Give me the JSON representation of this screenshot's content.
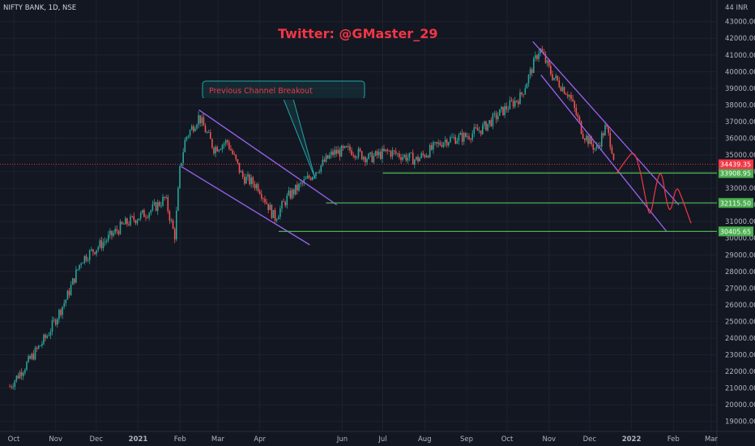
{
  "header": {
    "ticker": "NIFTY BANK, 1D, NSE",
    "unit_label": "44 INR"
  },
  "annotations": {
    "twitter_handle": "Twitter: @GMaster_29",
    "callout": "Previous Channel Breakout"
  },
  "colors": {
    "background": "#131722",
    "grid": "#1e2230",
    "bull": "#26a69a",
    "bear": "#ef5350",
    "channel": "#9c62f2",
    "support": "#4caf50",
    "callout": "#22a6a6",
    "projection": "#f23645",
    "current_price": "#f23645"
  },
  "chart_data": {
    "type": "candlestick",
    "title": "NIFTY BANK, 1D, NSE",
    "y_axis": {
      "ticks": [
        "19000.00",
        "20000.00",
        "21000.00",
        "22000.00",
        "23000.00",
        "24000.00",
        "25000.00",
        "26000.00",
        "27000.00",
        "28000.00",
        "29000.00",
        "30000.00",
        "31000.00",
        "32000.00",
        "33000.00",
        "34000.00",
        "35000.00",
        "36000.00",
        "37000.00",
        "38000.00",
        "39000.00",
        "40000.00",
        "41000.00",
        "42000.00",
        "43000.00"
      ],
      "ylim": [
        18400,
        44300
      ],
      "side": "right"
    },
    "x_axis": {
      "ticks": [
        "Oct",
        "Nov",
        "Dec",
        "2021",
        "Feb",
        "Mar",
        "Apr",
        "Jun",
        "Jul",
        "Aug",
        "Sep",
        "Oct",
        "Nov",
        "Dec",
        "2022",
        "Feb",
        "Mar"
      ],
      "bold_ticks": [
        "2021",
        "2022"
      ]
    },
    "price_path": [
      {
        "date": "2020-09-28",
        "close": 21100
      },
      {
        "date": "2020-10-12",
        "close": 22600
      },
      {
        "date": "2020-10-26",
        "close": 24200
      },
      {
        "date": "2020-11-09",
        "close": 26400
      },
      {
        "date": "2020-11-20",
        "close": 28700
      },
      {
        "date": "2020-12-07",
        "close": 29800
      },
      {
        "date": "2020-12-21",
        "close": 30800
      },
      {
        "date": "2021-01-11",
        "close": 31700
      },
      {
        "date": "2021-01-21",
        "close": 32400
      },
      {
        "date": "2021-01-28",
        "close": 30100
      },
      {
        "date": "2021-02-01",
        "close": 34200
      },
      {
        "date": "2021-02-05",
        "close": 36000
      },
      {
        "date": "2021-02-15",
        "close": 37300
      },
      {
        "date": "2021-02-26",
        "close": 35400
      },
      {
        "date": "2021-03-08",
        "close": 35800
      },
      {
        "date": "2021-03-19",
        "close": 33700
      },
      {
        "date": "2021-03-31",
        "close": 33100
      },
      {
        "date": "2021-04-12",
        "close": 31200
      },
      {
        "date": "2021-04-22",
        "close": 32500
      },
      {
        "date": "2021-05-07",
        "close": 33600
      },
      {
        "date": "2021-05-25",
        "close": 35100
      },
      {
        "date": "2021-06-07",
        "close": 35300
      },
      {
        "date": "2021-06-21",
        "close": 34800
      },
      {
        "date": "2021-07-05",
        "close": 35200
      },
      {
        "date": "2021-07-26",
        "close": 34700
      },
      {
        "date": "2021-08-16",
        "close": 35900
      },
      {
        "date": "2021-08-31",
        "close": 36100
      },
      {
        "date": "2021-09-13",
        "close": 36600
      },
      {
        "date": "2021-09-27",
        "close": 37600
      },
      {
        "date": "2021-10-11",
        "close": 38500
      },
      {
        "date": "2021-10-18",
        "close": 39900
      },
      {
        "date": "2021-10-25",
        "close": 41400
      },
      {
        "date": "2021-11-03",
        "close": 39800
      },
      {
        "date": "2021-11-16",
        "close": 38600
      },
      {
        "date": "2021-11-26",
        "close": 36300
      },
      {
        "date": "2021-12-06",
        "close": 35300
      },
      {
        "date": "2021-12-13",
        "close": 36700
      },
      {
        "date": "2021-12-17",
        "close": 35600
      },
      {
        "date": "2021-12-20",
        "close": 34439.35
      }
    ],
    "channels": [
      {
        "upper": [
          [
            "2021-02-15",
            37700
          ],
          [
            "2021-05-28",
            32000
          ]
        ],
        "lower": [
          [
            "2021-02-02",
            34300
          ],
          [
            "2021-05-08",
            29600
          ]
        ]
      },
      {
        "upper": [
          [
            "2021-10-20",
            41800
          ],
          [
            "2022-02-05",
            32000
          ]
        ],
        "lower": [
          [
            "2021-10-26",
            39800
          ],
          [
            "2022-01-27",
            30400
          ]
        ]
      }
    ],
    "support_lines": [
      {
        "value": 33908.95,
        "label": "33908.95",
        "from": "2021-07-01"
      },
      {
        "value": 32115.5,
        "label": "32115.50",
        "from": "2021-05-20"
      },
      {
        "value": 30405.65,
        "label": "30405.65",
        "from": "2021-04-15"
      }
    ],
    "current_price": {
      "value": 34439.35,
      "label": "34439.35"
    },
    "projection_path": [
      [
        "2021-12-21",
        33900
      ],
      [
        "2021-12-28",
        34700
      ],
      [
        "2022-01-03",
        35300
      ],
      [
        "2022-01-08",
        33900
      ],
      [
        "2022-01-12",
        32100
      ],
      [
        "2022-01-15",
        31200
      ],
      [
        "2022-01-19",
        33200
      ],
      [
        "2022-01-23",
        34200
      ],
      [
        "2022-01-27",
        32100
      ],
      [
        "2022-01-30",
        31500
      ],
      [
        "2022-02-03",
        33200
      ],
      [
        "2022-02-07",
        32500
      ],
      [
        "2022-02-14",
        30900
      ]
    ]
  }
}
